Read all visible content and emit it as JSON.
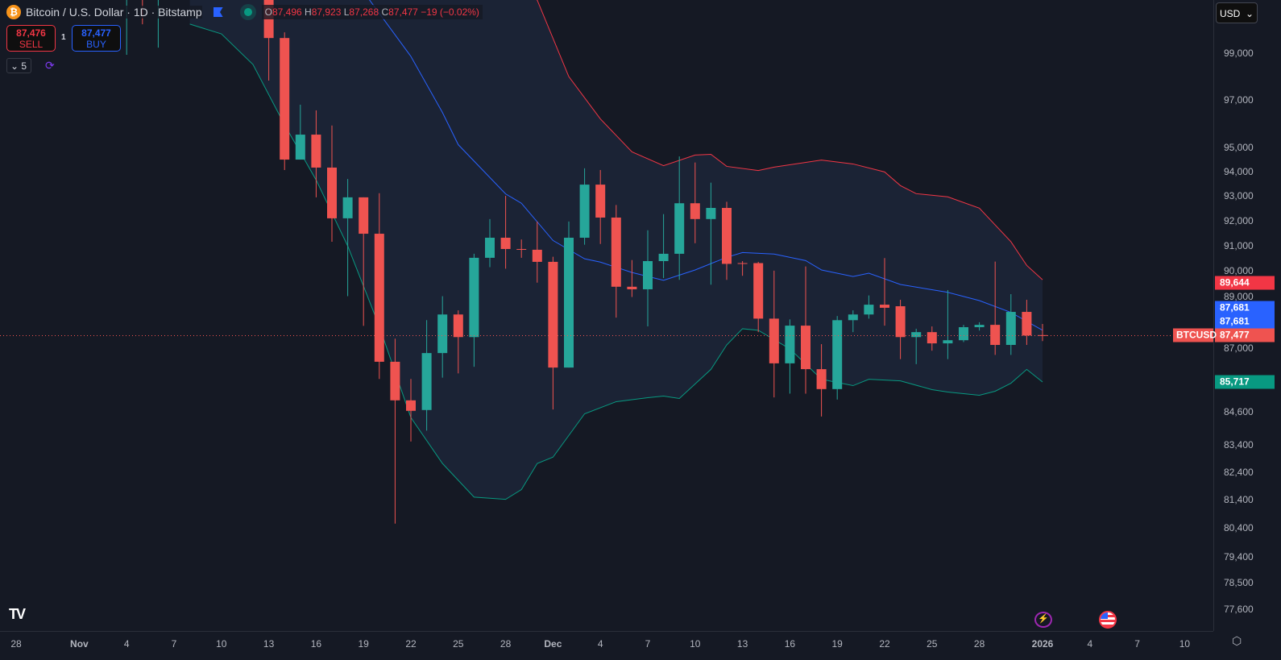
{
  "header": {
    "symbol_title": "Bitcoin / U.S. Dollar · 1D · Bitstamp",
    "open_label": "O",
    "open": "87,496",
    "high_label": "H",
    "high": "87,923",
    "low_label": "L",
    "low": "87,268",
    "close_label": "C",
    "close": "87,477",
    "change": "−19 (−0.02%)"
  },
  "trade": {
    "sell_price": "87,476",
    "sell_label": "SELL",
    "spread": "1",
    "buy_price": "87,477",
    "buy_label": "BUY"
  },
  "indicators": {
    "collapse_count": "5"
  },
  "currency": {
    "selected": "USD"
  },
  "colors": {
    "up": "#26a69a",
    "down": "#ef5350",
    "upper_band": "#f23645",
    "middle_band": "#2962ff",
    "lower_band": "#089981",
    "band_fill": "#1b2335"
  },
  "price_tags": {
    "upper": "89,644",
    "middle": "87,681",
    "middle2": "87,681",
    "symbol": "BTCUSD",
    "last": "87,477",
    "lower": "85,717"
  },
  "chart_data": {
    "type": "candlestick",
    "symbol": "BTCUSD",
    "yscale": "log",
    "y_ticks": [
      "99,000",
      "97,000",
      "95,000",
      "94,000",
      "93,000",
      "92,000",
      "91,000",
      "90,000",
      "89,000",
      "87,000",
      "84,600",
      "83,400",
      "82,400",
      "81,400",
      "80,400",
      "79,400",
      "78,500",
      "77,600"
    ],
    "x_ticks": [
      {
        "d": "2025-10-28",
        "t": "28"
      },
      {
        "d": "2025-11-01",
        "t": "Nov"
      },
      {
        "d": "2025-11-04",
        "t": "4"
      },
      {
        "d": "2025-11-07",
        "t": "7"
      },
      {
        "d": "2025-11-10",
        "t": "10"
      },
      {
        "d": "2025-11-13",
        "t": "13"
      },
      {
        "d": "2025-11-16",
        "t": "16"
      },
      {
        "d": "2025-11-19",
        "t": "19"
      },
      {
        "d": "2025-11-22",
        "t": "22"
      },
      {
        "d": "2025-11-25",
        "t": "25"
      },
      {
        "d": "2025-11-28",
        "t": "28"
      },
      {
        "d": "2025-12-01",
        "t": "Dec"
      },
      {
        "d": "2025-12-04",
        "t": "4"
      },
      {
        "d": "2025-12-07",
        "t": "7"
      },
      {
        "d": "2025-12-10",
        "t": "10"
      },
      {
        "d": "2025-12-13",
        "t": "13"
      },
      {
        "d": "2025-12-16",
        "t": "16"
      },
      {
        "d": "2025-12-19",
        "t": "19"
      },
      {
        "d": "2025-12-22",
        "t": "22"
      },
      {
        "d": "2025-12-25",
        "t": "25"
      },
      {
        "d": "2025-12-28",
        "t": "28"
      },
      {
        "d": "2026-01-01",
        "t": "2026"
      },
      {
        "d": "2026-01-04",
        "t": "4"
      },
      {
        "d": "2026-01-07",
        "t": "7"
      },
      {
        "d": "2026-01-10",
        "t": "10"
      }
    ],
    "candles": [
      [
        "2025-11-04",
        103000,
        105000,
        98930,
        104000
      ],
      [
        "2025-11-05",
        104000,
        105500,
        100260,
        103800
      ],
      [
        "2025-11-06",
        103800,
        105000,
        99240,
        104100
      ],
      [
        "2025-11-13",
        103500,
        105000,
        97820,
        99660
      ],
      [
        "2025-11-14",
        99660,
        99910,
        94060,
        94490
      ],
      [
        "2025-11-15",
        94490,
        96790,
        94490,
        95530
      ],
      [
        "2025-11-16",
        95530,
        96550,
        92940,
        94160
      ],
      [
        "2025-11-17",
        94160,
        95910,
        91150,
        92090
      ],
      [
        "2025-11-18",
        92090,
        93690,
        89000,
        92940
      ],
      [
        "2025-11-19",
        92940,
        92940,
        87850,
        91470
      ],
      [
        "2025-11-20",
        91470,
        93110,
        85830,
        86480
      ],
      [
        "2025-11-21",
        86480,
        87360,
        80560,
        85030
      ],
      [
        "2025-11-22",
        85030,
        85830,
        83510,
        84640
      ],
      [
        "2025-11-23",
        84670,
        88070,
        83910,
        86810
      ],
      [
        "2025-11-24",
        86810,
        89000,
        85880,
        88290
      ],
      [
        "2025-11-25",
        88290,
        88450,
        86040,
        87420
      ],
      [
        "2025-11-26",
        87420,
        90670,
        86290,
        90510
      ],
      [
        "2025-11-27",
        90510,
        92060,
        90140,
        91310
      ],
      [
        "2025-11-28",
        91310,
        93000,
        90080,
        90860
      ],
      [
        "2025-11-29",
        90860,
        91240,
        90510,
        90830
      ],
      [
        "2025-11-30",
        90830,
        91960,
        89530,
        90350
      ],
      [
        "2025-12-01",
        90350,
        90550,
        84690,
        86260
      ],
      [
        "2025-12-02",
        86260,
        91960,
        86260,
        91310
      ],
      [
        "2025-12-03",
        91310,
        94130,
        91030,
        93460
      ],
      [
        "2025-12-04",
        93460,
        94060,
        91060,
        92120
      ],
      [
        "2025-12-05",
        92120,
        92630,
        88170,
        89370
      ],
      [
        "2025-12-06",
        89370,
        90420,
        88970,
        89270
      ],
      [
        "2025-12-07",
        89270,
        91610,
        87830,
        90380
      ],
      [
        "2025-12-08",
        90380,
        92260,
        89710,
        90670
      ],
      [
        "2025-12-09",
        90670,
        94620,
        89640,
        92700
      ],
      [
        "2025-12-10",
        92700,
        94370,
        91090,
        92060
      ],
      [
        "2025-12-11",
        92060,
        93540,
        89450,
        92510
      ],
      [
        "2025-12-12",
        92510,
        92760,
        89640,
        90270
      ],
      [
        "2025-12-13",
        90300,
        90380,
        89800,
        90280
      ],
      [
        "2025-12-14",
        90300,
        90350,
        87610,
        88130
      ],
      [
        "2025-12-15",
        88130,
        90000,
        85140,
        86420
      ],
      [
        "2025-12-16",
        86420,
        88100,
        85280,
        87860
      ],
      [
        "2025-12-17",
        87860,
        90170,
        85280,
        86200
      ],
      [
        "2025-12-18",
        86200,
        87150,
        84430,
        85450
      ],
      [
        "2025-12-19",
        85450,
        88230,
        85060,
        88070
      ],
      [
        "2025-12-20",
        88070,
        88450,
        87610,
        88290
      ],
      [
        "2025-12-21",
        88290,
        89030,
        88130,
        88670
      ],
      [
        "2025-12-22",
        88670,
        90500,
        87860,
        88550
      ],
      [
        "2025-12-23",
        88610,
        88860,
        86580,
        87420
      ],
      [
        "2025-12-24",
        87420,
        87740,
        86390,
        87610
      ],
      [
        "2025-12-25",
        87610,
        87830,
        86900,
        87180
      ],
      [
        "2025-12-26",
        87180,
        89240,
        86580,
        87300
      ],
      [
        "2025-12-27",
        87300,
        87890,
        87230,
        87800
      ],
      [
        "2025-12-28",
        87800,
        87990,
        87670,
        87890
      ],
      [
        "2025-12-29",
        87890,
        90360,
        86740,
        87120
      ],
      [
        "2025-12-30",
        87120,
        89080,
        86740,
        88390
      ],
      [
        "2025-12-31",
        88390,
        88860,
        87120,
        87480
      ],
      [
        "2026-01-01",
        87496,
        87923,
        87268,
        87477
      ]
    ],
    "bollinger": {
      "upper": [
        [
          "2025-11-08",
          112000
        ],
        [
          "2025-11-30",
          101330
        ],
        [
          "2025-12-02",
          97990
        ],
        [
          "2025-12-04",
          96190
        ],
        [
          "2025-12-06",
          94810
        ],
        [
          "2025-12-08",
          94240
        ],
        [
          "2025-12-10",
          94680
        ],
        [
          "2025-12-11",
          94710
        ],
        [
          "2025-12-12",
          94210
        ],
        [
          "2025-12-14",
          94040
        ],
        [
          "2025-12-15",
          94180
        ],
        [
          "2025-12-18",
          94470
        ],
        [
          "2025-12-20",
          94310
        ],
        [
          "2025-12-22",
          93980
        ],
        [
          "2025-12-23",
          93420
        ],
        [
          "2025-12-24",
          93090
        ],
        [
          "2025-12-26",
          92960
        ],
        [
          "2025-12-28",
          92500
        ],
        [
          "2025-12-30",
          91150
        ],
        [
          "2025-12-31",
          90210
        ],
        [
          "2026-01-01",
          89644
        ]
      ],
      "middle": [
        [
          "2025-11-19",
          101700
        ],
        [
          "2025-11-22",
          98860
        ],
        [
          "2025-11-24",
          96460
        ],
        [
          "2025-11-25",
          95110
        ],
        [
          "2025-11-28",
          93080
        ],
        [
          "2025-11-29",
          92700
        ],
        [
          "2025-12-01",
          91200
        ],
        [
          "2025-12-03",
          90470
        ],
        [
          "2025-12-04",
          90340
        ],
        [
          "2025-12-06",
          89930
        ],
        [
          "2025-12-08",
          89620
        ],
        [
          "2025-12-10",
          90030
        ],
        [
          "2025-12-12",
          90530
        ],
        [
          "2025-12-13",
          90720
        ],
        [
          "2025-12-15",
          90660
        ],
        [
          "2025-12-17",
          90400
        ],
        [
          "2025-12-18",
          90030
        ],
        [
          "2025-12-20",
          89770
        ],
        [
          "2025-12-21",
          89900
        ],
        [
          "2025-12-23",
          89460
        ],
        [
          "2025-12-26",
          89150
        ],
        [
          "2025-12-28",
          88830
        ],
        [
          "2025-12-30",
          88370
        ],
        [
          "2026-01-01",
          87681
        ]
      ],
      "lower": [
        [
          "2025-11-08",
          100270
        ],
        [
          "2025-11-10",
          99840
        ],
        [
          "2025-11-12",
          98510
        ],
        [
          "2025-11-14",
          95940
        ],
        [
          "2025-11-16",
          93650
        ],
        [
          "2025-11-18",
          90980
        ],
        [
          "2025-11-20",
          87830
        ],
        [
          "2025-11-22",
          84390
        ],
        [
          "2025-11-24",
          82710
        ],
        [
          "2025-11-26",
          81500
        ],
        [
          "2025-11-28",
          81420
        ],
        [
          "2025-11-29",
          81770
        ],
        [
          "2025-11-30",
          82710
        ],
        [
          "2025-12-01",
          82940
        ],
        [
          "2025-12-03",
          84530
        ],
        [
          "2025-12-05",
          84980
        ],
        [
          "2025-12-07",
          85130
        ],
        [
          "2025-12-08",
          85190
        ],
        [
          "2025-12-09",
          85100
        ],
        [
          "2025-12-11",
          86190
        ],
        [
          "2025-12-12",
          87120
        ],
        [
          "2025-12-13",
          87740
        ],
        [
          "2025-12-14",
          87680
        ],
        [
          "2025-12-16",
          86970
        ],
        [
          "2025-12-18",
          85820
        ],
        [
          "2025-12-20",
          85580
        ],
        [
          "2025-12-21",
          85820
        ],
        [
          "2025-12-23",
          85760
        ],
        [
          "2025-12-25",
          85430
        ],
        [
          "2025-12-26",
          85340
        ],
        [
          "2025-12-28",
          85220
        ],
        [
          "2025-12-29",
          85370
        ],
        [
          "2025-12-30",
          85670
        ],
        [
          "2025-12-31",
          86190
        ],
        [
          "2026-01-01",
          85717
        ]
      ]
    },
    "last_price": 87477
  }
}
